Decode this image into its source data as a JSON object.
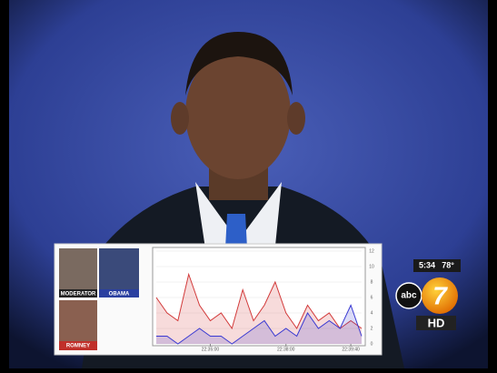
{
  "overlay": {
    "speakers": [
      "MODERATOR",
      "OBAMA",
      "ROMNEY"
    ],
    "chart": {
      "type": "line",
      "series": [
        {
          "color": "#d23a3a",
          "values": [
            6,
            4,
            3,
            9,
            5,
            3,
            4,
            2,
            7,
            3,
            5,
            8,
            4,
            2,
            5,
            3,
            4,
            2,
            3,
            2
          ]
        },
        {
          "color": "#3a3ad2",
          "values": [
            1,
            1,
            0,
            1,
            2,
            1,
            1,
            0,
            1,
            2,
            3,
            1,
            2,
            1,
            4,
            2,
            3,
            2,
            5,
            1
          ]
        }
      ],
      "xlim": [
        0,
        19
      ],
      "xticks": [
        {
          "value": 5,
          "label": "22:35:00"
        },
        {
          "value": 12,
          "label": "22:38:00"
        },
        {
          "value": 18,
          "label": "22:39:40"
        }
      ],
      "ylim": [
        0,
        12
      ],
      "yticks": [
        0,
        2,
        4,
        6,
        8,
        10,
        12
      ]
    }
  },
  "station": {
    "time": "5:34",
    "temp": "78°",
    "network": "abc",
    "channel": "7",
    "hd": "HD"
  }
}
